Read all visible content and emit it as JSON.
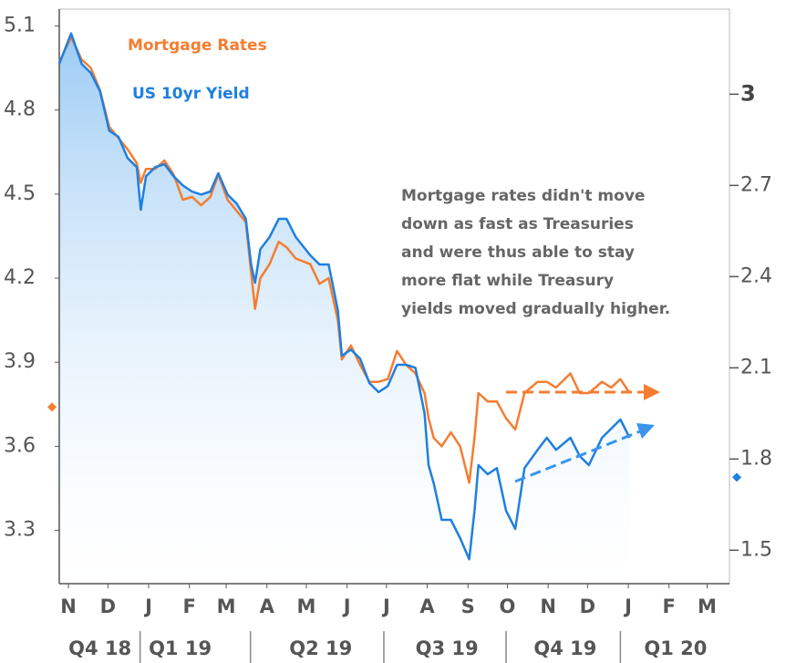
{
  "chart_data": {
    "type": "line",
    "x": [
      -7,
      2,
      10,
      17,
      24,
      31,
      38,
      45,
      52,
      55,
      59,
      66,
      73,
      80,
      87,
      94,
      101,
      108,
      114,
      121,
      128,
      135,
      139,
      142,
      146,
      153,
      160,
      166,
      173,
      184,
      191,
      198,
      205,
      208,
      215,
      222,
      229,
      236,
      243,
      250,
      257,
      264,
      271,
      274,
      278,
      284,
      291,
      298,
      305,
      309,
      312,
      319,
      326,
      333,
      340,
      347,
      357,
      364,
      371,
      382,
      389,
      396,
      406,
      413,
      420,
      427
    ],
    "xlim": [
      -7,
      503
    ],
    "xticks": [
      {
        "value": 0,
        "label": "N"
      },
      {
        "value": 30,
        "label": "D"
      },
      {
        "value": 61,
        "label": "J"
      },
      {
        "value": 92,
        "label": "F"
      },
      {
        "value": 120,
        "label": "M"
      },
      {
        "value": 151,
        "label": "A"
      },
      {
        "value": 181,
        "label": "M"
      },
      {
        "value": 212,
        "label": "J"
      },
      {
        "value": 242,
        "label": "J"
      },
      {
        "value": 273,
        "label": "A"
      },
      {
        "value": 304,
        "label": "S"
      },
      {
        "value": 334,
        "label": "O"
      },
      {
        "value": 365,
        "label": "N"
      },
      {
        "value": 395,
        "label": "D"
      },
      {
        "value": 426,
        "label": "J"
      },
      {
        "value": 457,
        "label": "F"
      },
      {
        "value": 486,
        "label": "M"
      }
    ],
    "quarters": [
      {
        "value": 24,
        "label": "Q4 18"
      },
      {
        "value": 85,
        "label": "Q1 19"
      },
      {
        "value": 192,
        "label": "Q2 19"
      },
      {
        "value": 288,
        "label": "Q3 19"
      },
      {
        "value": 378,
        "label": "Q4 19"
      },
      {
        "value": 462,
        "label": "Q1 20"
      }
    ],
    "ylim": [
      3.11,
      5.16
    ],
    "yticks": [
      3.3,
      3.6,
      3.9,
      4.2,
      4.5,
      4.8,
      5.1
    ],
    "y2lim": [
      1.39,
      3.28
    ],
    "y2ticks": [
      1.5,
      1.8,
      2.1,
      2.4,
      2.7,
      3
    ],
    "series": [
      {
        "name": "Mortgage Rates",
        "color": "#f47d30",
        "axis": "y",
        "marker_value": 3.74,
        "values": [
          4.97,
          5.06,
          4.98,
          4.95,
          4.87,
          4.74,
          4.7,
          4.66,
          4.61,
          4.54,
          4.59,
          4.59,
          4.62,
          4.57,
          4.48,
          4.49,
          4.46,
          4.49,
          4.57,
          4.48,
          4.44,
          4.4,
          4.22,
          4.09,
          4.2,
          4.25,
          4.33,
          4.31,
          4.27,
          4.25,
          4.18,
          4.2,
          4.05,
          3.91,
          3.96,
          3.89,
          3.83,
          3.83,
          3.84,
          3.94,
          3.89,
          3.86,
          3.79,
          3.7,
          3.63,
          3.6,
          3.65,
          3.6,
          3.47,
          3.63,
          3.79,
          3.76,
          3.76,
          3.7,
          3.66,
          3.79,
          3.83,
          3.83,
          3.81,
          3.86,
          3.79,
          3.79,
          3.83,
          3.81,
          3.84,
          3.79
        ]
      },
      {
        "name": "US 10yr Yield",
        "color": "#1f7fe0",
        "axis": "y2",
        "marker_value": 1.74,
        "values": [
          3.1,
          3.2,
          3.1,
          3.07,
          3.01,
          2.88,
          2.86,
          2.79,
          2.76,
          2.62,
          2.73,
          2.76,
          2.77,
          2.73,
          2.7,
          2.68,
          2.67,
          2.68,
          2.74,
          2.67,
          2.64,
          2.59,
          2.44,
          2.38,
          2.49,
          2.53,
          2.59,
          2.59,
          2.53,
          2.47,
          2.44,
          2.44,
          2.29,
          2.14,
          2.16,
          2.13,
          2.05,
          2.02,
          2.04,
          2.11,
          2.11,
          2.1,
          1.95,
          1.78,
          1.72,
          1.6,
          1.6,
          1.54,
          1.47,
          1.63,
          1.78,
          1.75,
          1.77,
          1.63,
          1.57,
          1.77,
          1.83,
          1.87,
          1.83,
          1.87,
          1.81,
          1.78,
          1.87,
          1.9,
          1.93,
          1.87
        ]
      }
    ],
    "annotation": [
      "Mortgage rates didn't move",
      "down as fast as Treasuries",
      "and were thus able to stay",
      "more flat while Treasury",
      "yields moved gradually higher."
    ]
  }
}
